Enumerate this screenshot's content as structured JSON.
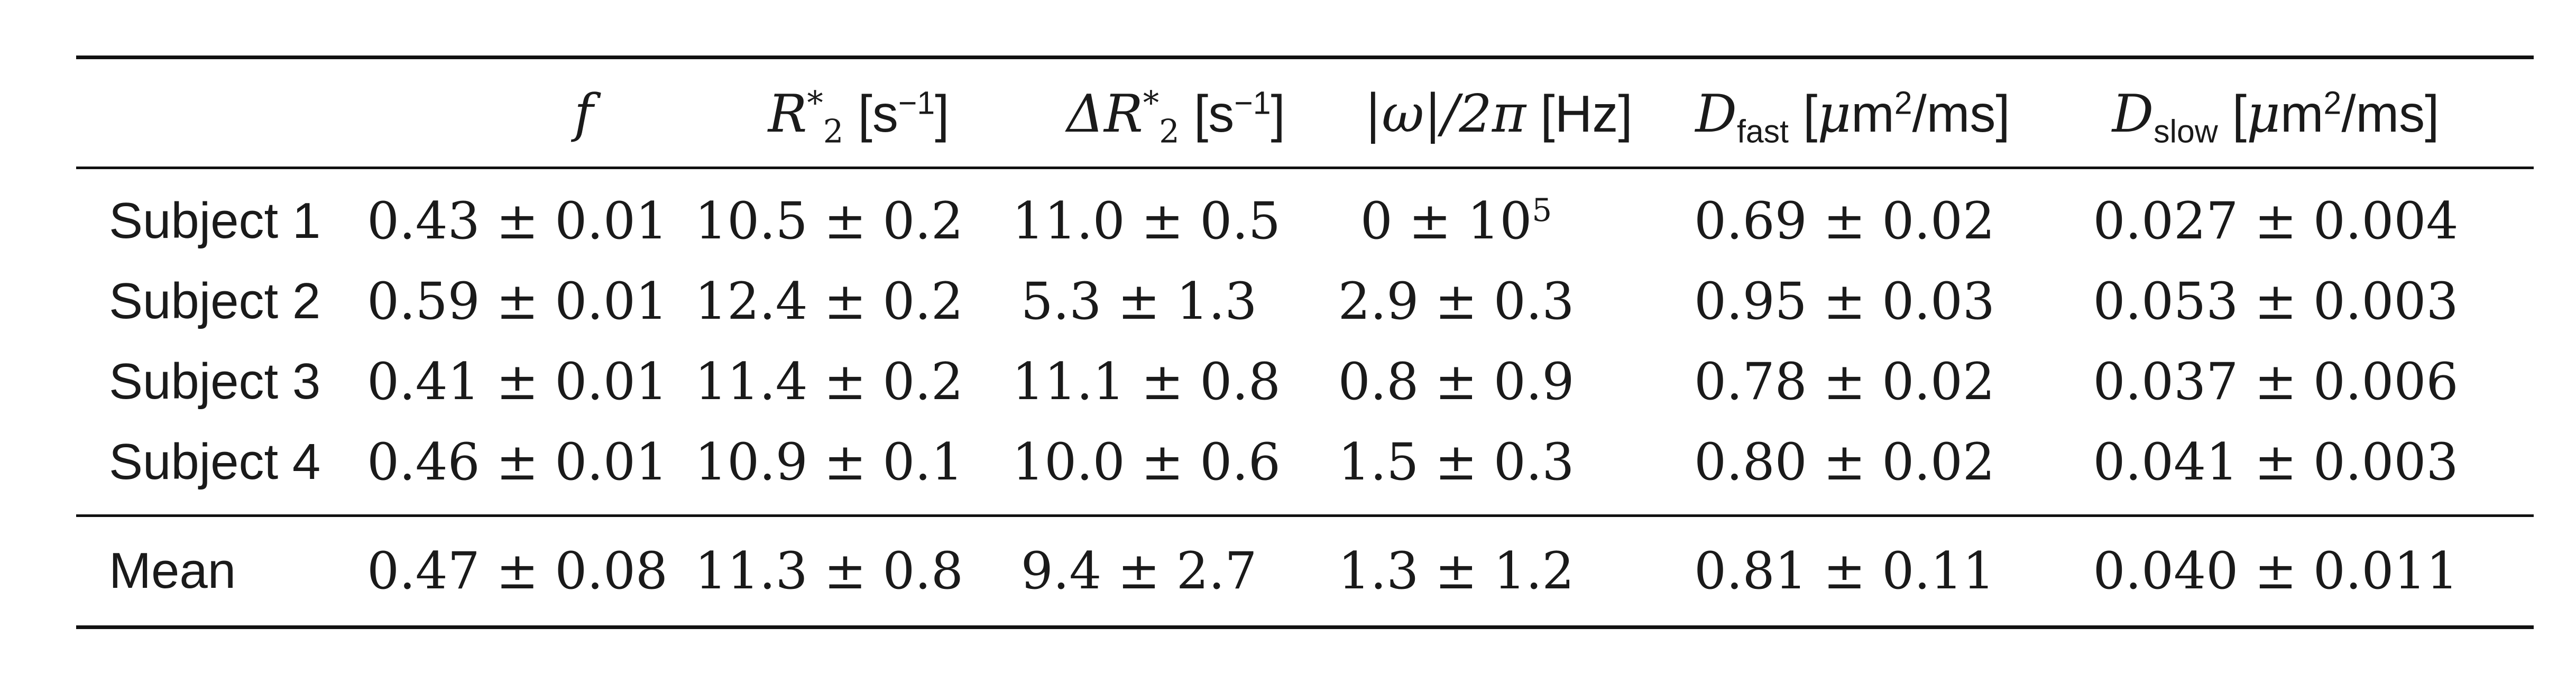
{
  "table": {
    "headers": {
      "f": "f",
      "r2": {
        "sym": "R",
        "sup": "*",
        "sub": "2",
        "unit_open": " [s",
        "unit_sup": "−1",
        "unit_close": "]"
      },
      "dr2": {
        "sym": "ΔR",
        "sup": "*",
        "sub": "2",
        "unit_open": " [s",
        "unit_sup": "−1",
        "unit_close": "]"
      },
      "omega": {
        "sym": "|ω|/2π",
        "unit": " [Hz]"
      },
      "dfast": {
        "sym": "D",
        "sub": "fast",
        "unit_open": " [",
        "mu": "μ",
        "unit_mid": "m",
        "unit_sup": "2",
        "unit_close": "/ms]"
      },
      "dslow": {
        "sym": "D",
        "sub": "slow",
        "unit_open": " [",
        "mu": "μ",
        "unit_mid": "m",
        "unit_sup": "2",
        "unit_close": "/ms]"
      }
    },
    "rows": [
      {
        "label": "Subject 1",
        "f": "0.43 ± 0.01",
        "r2": "10.5 ± 0.2",
        "dr2": "11.0 ± 0.5",
        "omega_base": "0 ± 10",
        "omega_exp": "5",
        "dfast": "0.69 ± 0.02",
        "dslow": "0.027 ± 0.004"
      },
      {
        "label": "Subject 2",
        "f": "0.59 ± 0.01",
        "r2": "12.4 ± 0.2",
        "dr2": "5.3 ± 1.3",
        "omega": "2.9 ± 0.3",
        "dfast": "0.95 ± 0.03",
        "dslow": "0.053 ± 0.003"
      },
      {
        "label": "Subject 3",
        "f": "0.41 ± 0.01",
        "r2": "11.4 ± 0.2",
        "dr2": "11.1 ± 0.8",
        "omega": "0.8 ± 0.9",
        "dfast": "0.78 ± 0.02",
        "dslow": "0.037 ± 0.006"
      },
      {
        "label": "Subject 4",
        "f": "0.46 ± 0.01",
        "r2": "10.9 ± 0.1",
        "dr2": "10.0 ± 0.6",
        "omega": "1.5 ± 0.3",
        "dfast": "0.80 ± 0.02",
        "dslow": "0.041 ± 0.003"
      }
    ],
    "mean": {
      "label": "Mean",
      "f": "0.47 ± 0.08",
      "r2": "11.3 ± 0.8",
      "dr2": "9.4 ± 2.7",
      "omega": "1.3 ± 1.2",
      "dfast": "0.81 ± 0.11",
      "dslow": "0.040 ± 0.011"
    }
  }
}
